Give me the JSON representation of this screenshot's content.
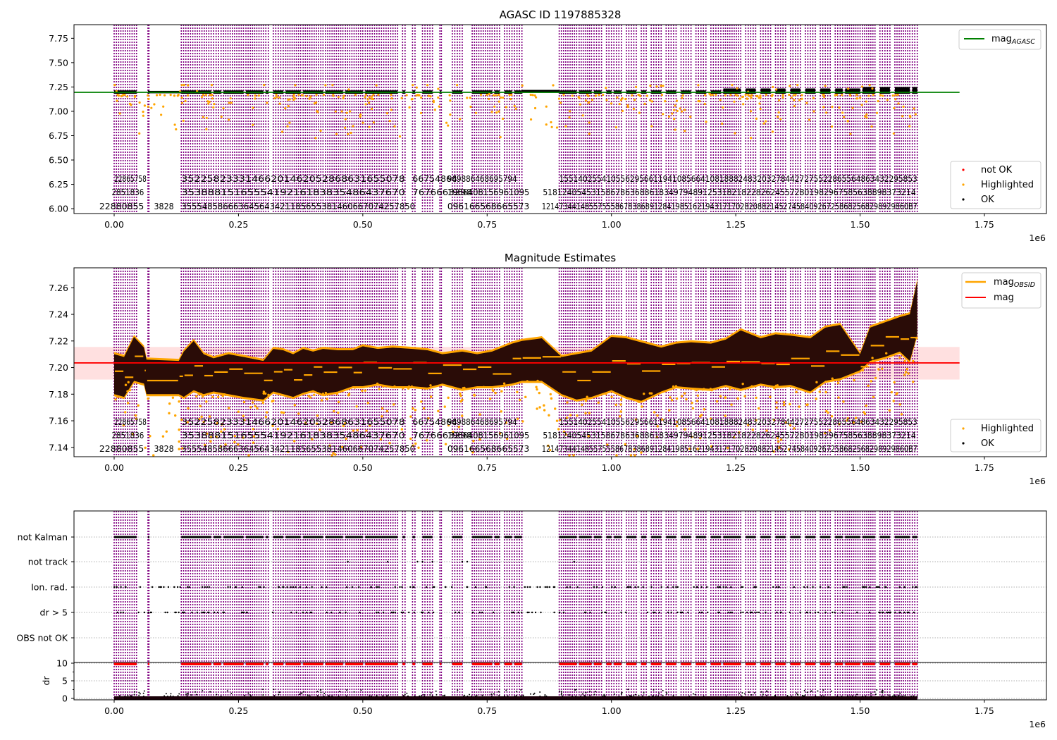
{
  "colors": {
    "agasc_line": "#008000",
    "obsid_line": "#ffa500",
    "mean_line": "#ff0000",
    "band": "#ffcccc",
    "not_ok": "#ff0000",
    "highlighted": "#ffa500",
    "ok": "#000000",
    "obs_lines": "#800080"
  },
  "chart_data": [
    {
      "type": "scatter",
      "title": "AGASC ID 1197885328",
      "xlabel": "",
      "x_offset_label": "1e6",
      "ylabel": "",
      "xlim": [
        -0.08,
        1.87
      ],
      "ylim": [
        5.95,
        7.89
      ],
      "xticks": [
        "0.00",
        "0.25",
        "0.50",
        "0.75",
        "1.00",
        "1.25",
        "1.50",
        "1.75"
      ],
      "xtick_values": [
        0.0,
        0.25,
        0.5,
        0.75,
        1.0,
        1.25,
        1.5,
        1.75
      ],
      "yticks": [
        "6.00",
        "6.25",
        "6.50",
        "6.75",
        "7.00",
        "7.25",
        "7.50",
        "7.75"
      ],
      "ytick_values": [
        6.0,
        6.25,
        6.5,
        6.75,
        7.0,
        7.25,
        7.5,
        7.75
      ],
      "series": [
        {
          "name": "mag_AGASC",
          "kind": "hline",
          "y": 7.195,
          "xrange": [
            -0.08,
            1.7
          ]
        },
        {
          "name": "not OK",
          "kind": "points"
        },
        {
          "name": "Highlighted",
          "kind": "points"
        },
        {
          "name": "OK",
          "kind": "points",
          "y_level": 7.2,
          "x_range": [
            0.0,
            1.615
          ]
        }
      ],
      "legend_upper": {
        "position": "upper right",
        "entries": [
          {
            "label": "mag",
            "sub": "AGASC"
          }
        ]
      },
      "legend_lower": {
        "position": "lower right",
        "entries": [
          "not OK",
          "Highlighted",
          "OK"
        ]
      },
      "annotations": {
        "row1": [
          "22865758",
          "35225823331466201462052868631655078",
          "66754864",
          "969886468695794",
          "1551402554105562956611941085664108188824832032784427275522865564863432295853"
        ],
        "row2": [
          "2851836",
          "3538881516555419216183835486437670",
          "7676663298",
          "1966408156961095",
          "51812405453158678636886183497948912531821822826245572801982967585638898373214"
        ],
        "row3": [
          "22880855",
          "3828",
          "355548586663645643421185655381460667074257850",
          "096166568665573",
          "1214734414855755586783868912841985162194317170282088214527458409267258682568298929860B7"
        ]
      }
    },
    {
      "type": "scatter",
      "title": "Magnitude Estimates",
      "xlabel": "",
      "x_offset_label": "1e6",
      "xlim": [
        -0.08,
        1.87
      ],
      "ylim": [
        7.133,
        7.275
      ],
      "xticks": [
        "0.00",
        "0.25",
        "0.50",
        "0.75",
        "1.00",
        "1.25",
        "1.50",
        "1.75"
      ],
      "xtick_values": [
        0.0,
        0.25,
        0.5,
        0.75,
        1.0,
        1.25,
        1.5,
        1.75
      ],
      "yticks": [
        "7.14",
        "7.16",
        "7.18",
        "7.20",
        "7.22",
        "7.24",
        "7.26"
      ],
      "ytick_values": [
        7.14,
        7.16,
        7.18,
        7.2,
        7.22,
        7.24,
        7.26
      ],
      "series": [
        {
          "name": "mag_OBSID",
          "kind": "step-segments"
        },
        {
          "name": "mag",
          "kind": "hline",
          "y": 7.2035,
          "band": [
            7.191,
            7.2155
          ],
          "xrange": [
            -0.08,
            1.7
          ]
        },
        {
          "name": "Highlighted",
          "kind": "points"
        },
        {
          "name": "OK",
          "kind": "points"
        }
      ],
      "envelope": {
        "x": [
          0.0,
          0.02,
          0.04,
          0.06,
          0.065,
          0.13,
          0.14,
          0.16,
          0.18,
          0.2,
          0.23,
          0.26,
          0.3,
          0.32,
          0.34,
          0.36,
          0.38,
          0.4,
          0.42,
          0.45,
          0.48,
          0.5,
          0.53,
          0.56,
          0.6,
          0.63,
          0.66,
          0.7,
          0.73,
          0.76,
          0.8,
          0.82,
          0.86,
          0.9,
          0.93,
          0.96,
          1.0,
          1.03,
          1.06,
          1.1,
          1.13,
          1.16,
          1.2,
          1.23,
          1.26,
          1.3,
          1.33,
          1.36,
          1.4,
          1.43,
          1.46,
          1.5,
          1.52,
          1.55,
          1.58,
          1.6,
          1.615
        ],
        "upper": [
          7.21,
          7.208,
          7.223,
          7.215,
          7.206,
          7.205,
          7.212,
          7.22,
          7.21,
          7.207,
          7.21,
          7.208,
          7.205,
          7.214,
          7.213,
          7.21,
          7.214,
          7.212,
          7.214,
          7.213,
          7.213,
          7.216,
          7.214,
          7.215,
          7.214,
          7.213,
          7.21,
          7.212,
          7.21,
          7.212,
          7.218,
          7.22,
          7.222,
          7.208,
          7.21,
          7.212,
          7.223,
          7.222,
          7.219,
          7.215,
          7.218,
          7.219,
          7.218,
          7.221,
          7.228,
          7.222,
          7.225,
          7.224,
          7.222,
          7.23,
          7.232,
          7.21,
          7.23,
          7.234,
          7.238,
          7.24,
          7.265
        ],
        "lower": [
          7.18,
          7.178,
          7.19,
          7.188,
          7.18,
          7.18,
          7.178,
          7.183,
          7.18,
          7.182,
          7.18,
          7.178,
          7.176,
          7.182,
          7.18,
          7.178,
          7.181,
          7.183,
          7.18,
          7.182,
          7.186,
          7.186,
          7.188,
          7.186,
          7.186,
          7.185,
          7.188,
          7.184,
          7.186,
          7.186,
          7.188,
          7.19,
          7.19,
          7.18,
          7.176,
          7.178,
          7.183,
          7.178,
          7.175,
          7.182,
          7.186,
          7.185,
          7.184,
          7.187,
          7.184,
          7.188,
          7.186,
          7.187,
          7.182,
          7.19,
          7.192,
          7.198,
          7.205,
          7.208,
          7.212,
          7.205,
          7.225
        ]
      },
      "legend_upper": {
        "position": "upper right",
        "entries": [
          {
            "label": "mag",
            "sub": "OBSID"
          },
          {
            "label": "mag",
            "sub": ""
          }
        ]
      },
      "legend_lower": {
        "position": "lower right",
        "entries": [
          "Highlighted",
          "OK"
        ]
      },
      "annotations": {
        "row1": [
          "22865758",
          "35225823331466201462052868631655078",
          "66754864",
          "969886468695794",
          "1551402554105562956611941085664108188824832032784427275522865564863432295853"
        ],
        "row2": [
          "2851836",
          "3538881516555419216183835486437670",
          "7676663298",
          "1966408156961095",
          "51812405453158678636886183497948912531821822826245572801982967585638898373214"
        ],
        "row3": [
          "22880855",
          "3828",
          "355548586663645643421185655381460667074257850",
          "096166568665573",
          "1214734414855755586783868912841985162194317170282088214527458409267258682568298929860B7"
        ]
      }
    },
    {
      "type": "scatter",
      "title": "",
      "xlabel": "",
      "x_offset_label": "1e6",
      "xlim": [
        -0.08,
        1.87
      ],
      "xticks": [
        "0.00",
        "0.25",
        "0.50",
        "0.75",
        "1.00",
        "1.25",
        "1.50",
        "1.75"
      ],
      "xtick_values": [
        0.0,
        0.25,
        0.5,
        0.75,
        1.0,
        1.25,
        1.5,
        1.75
      ],
      "category_rows": [
        "not Kalman",
        "not track",
        "Ion. rad.",
        "dr > 5",
        "OBS not OK"
      ],
      "dr_axis": {
        "ylabel": "dr",
        "yticks": [
          "0",
          "5",
          "10"
        ],
        "ytick_values": [
          0,
          5,
          10
        ],
        "ylim": [
          -0.5,
          10.3
        ]
      },
      "series": [
        {
          "name": "dr OK",
          "color": "#000000"
        },
        {
          "name": "dr clipped",
          "color": "#ff0000",
          "y": 10
        }
      ]
    }
  ],
  "obs_segments": [
    [
      0.0,
      0.045
    ],
    [
      0.068,
      0.07
    ],
    [
      0.135,
      0.195
    ],
    [
      0.2,
      0.215
    ],
    [
      0.22,
      0.26
    ],
    [
      0.265,
      0.3
    ],
    [
      0.305,
      0.31
    ],
    [
      0.32,
      0.34
    ],
    [
      0.345,
      0.375
    ],
    [
      0.38,
      0.42
    ],
    [
      0.425,
      0.46
    ],
    [
      0.465,
      0.5
    ],
    [
      0.505,
      0.57
    ],
    [
      0.58,
      0.585
    ],
    [
      0.6,
      0.605
    ],
    [
      0.62,
      0.64
    ],
    [
      0.655,
      0.658
    ],
    [
      0.68,
      0.7
    ],
    [
      0.72,
      0.76
    ],
    [
      0.765,
      0.775
    ],
    [
      0.785,
      0.8
    ],
    [
      0.805,
      0.82
    ],
    [
      0.895,
      0.93
    ],
    [
      0.935,
      0.96
    ],
    [
      0.965,
      0.98
    ],
    [
      0.99,
      1.0
    ],
    [
      1.005,
      1.02
    ],
    [
      1.03,
      1.05
    ],
    [
      1.06,
      1.07
    ],
    [
      1.08,
      1.1
    ],
    [
      1.11,
      1.13
    ],
    [
      1.14,
      1.16
    ],
    [
      1.17,
      1.19
    ],
    [
      1.2,
      1.22
    ],
    [
      1.225,
      1.26
    ],
    [
      1.27,
      1.29
    ],
    [
      1.3,
      1.32
    ],
    [
      1.33,
      1.35
    ],
    [
      1.36,
      1.38
    ],
    [
      1.39,
      1.41
    ],
    [
      1.42,
      1.44
    ],
    [
      1.45,
      1.465
    ],
    [
      1.47,
      1.5
    ],
    [
      1.505,
      1.53
    ],
    [
      1.54,
      1.56
    ],
    [
      1.57,
      1.6
    ],
    [
      1.605,
      1.615
    ]
  ]
}
